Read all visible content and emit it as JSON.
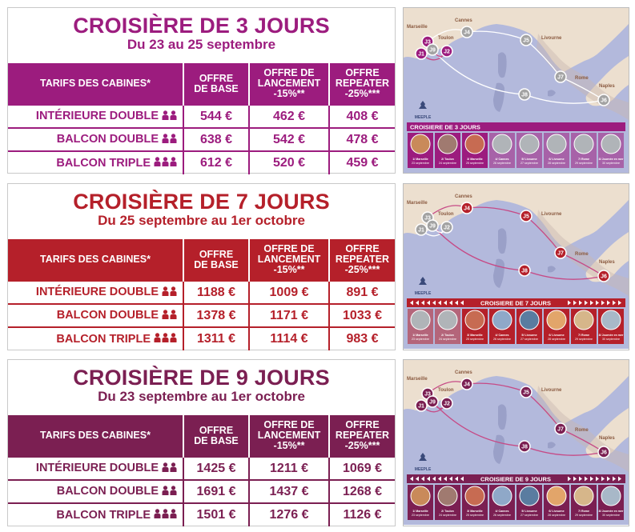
{
  "colors": {
    "c3": "#9c1c7e",
    "c7": "#b5202a",
    "c9": "#7b1f52",
    "sea": "#b3b9dc",
    "land": "#ecdfcf"
  },
  "table_headers": {
    "cabins": "TARIFS DES CABINES*",
    "base_l1": "OFFRE",
    "base_l2": "DE BASE",
    "launch_l1": "OFFRE DE",
    "launch_l2": "LANCEMENT",
    "launch_l3": "-15%**",
    "repeater_l1": "OFFRE",
    "repeater_l2": "REPEATER",
    "repeater_l3": "-25%***"
  },
  "cruise3": {
    "title": "CROISIÈRE DE 3 JOURS",
    "dates": "Du 23 au 25 septembre",
    "rows": [
      {
        "cabin": "INTÉRIEURE DOUBLE",
        "base": "544 €",
        "launch": "462 €",
        "repeater": "408 €"
      },
      {
        "cabin": "BALCON DOUBLE",
        "base": "638 €",
        "launch": "542 €",
        "repeater": "478 €"
      },
      {
        "cabin": "BALCON TRIPLE",
        "base": "612 €",
        "launch": "520 €",
        "repeater": "459 €"
      }
    ]
  },
  "cruise7": {
    "title": "CROISIÈRE DE 7 JOURS",
    "dates": "Du 25 septembre au 1er octobre",
    "rows": [
      {
        "cabin": "INTÉRIEURE DOUBLE",
        "base": "1188 €",
        "launch": "1009 €",
        "repeater": "891 €"
      },
      {
        "cabin": "BALCON DOUBLE",
        "base": "1378 €",
        "launch": "1171 €",
        "repeater": "1033 €"
      },
      {
        "cabin": "BALCON TRIPLE",
        "base": "1311 €",
        "launch": "1114 €",
        "repeater": "983 €"
      }
    ]
  },
  "cruise9": {
    "title": "CROISIÈRE DE 9 JOURS",
    "dates": "Du 23 septembre au 1er octobre",
    "rows": [
      {
        "cabin": "INTÉRIEURE DOUBLE",
        "base": "1425 €",
        "launch": "1211 €",
        "repeater": "1069 €"
      },
      {
        "cabin": "BALCON DOUBLE",
        "base": "1691 €",
        "launch": "1437 €",
        "repeater": "1268 €"
      },
      {
        "cabin": "BALCON TRIPLE",
        "base": "1501 €",
        "launch": "1276 €",
        "repeater": "1126 €"
      }
    ]
  },
  "maps": {
    "cities": {
      "marseille": "Marseille",
      "toulon": "Toulon",
      "cannes": "Cannes",
      "livourne": "Livourne",
      "rome": "Rome",
      "naples": "Naples"
    },
    "brand": "MEEPLE",
    "banner3": "CROISIERE DE 3 JOURS",
    "banner7": "CROISIERE DE 7 JOURS",
    "banner9": "CROISIERE DE 9 JOURS",
    "stops": [
      {
        "n": "1/ Marseille",
        "d": "23 septembre"
      },
      {
        "n": "2/ Toulon",
        "d": "24 septembre"
      },
      {
        "n": "3/ Marseille",
        "d": "25 septembre"
      },
      {
        "n": "4/ Cannes",
        "d": "26 septembre"
      },
      {
        "n": "5/ Livourne",
        "d": "27 septembre"
      },
      {
        "n": "6/ Livourne",
        "d": "28 septembre"
      },
      {
        "n": "7/ Rome",
        "d": "29 septembre"
      },
      {
        "n": "8/ Journée en mer",
        "d": "30 septembre"
      }
    ]
  }
}
